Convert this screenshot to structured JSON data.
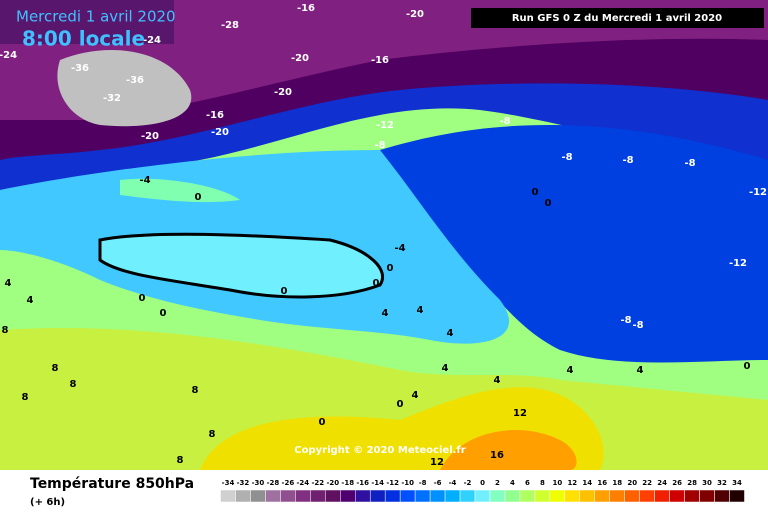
{
  "header": {
    "date": "Mercredi 1 avril 2020",
    "time": "8:00 locale",
    "run": "Run GFS 0 Z du Mercredi 1 avril 2020",
    "copyright": "Copyright © 2020 Meteociel.fr"
  },
  "footer": {
    "title": "Température 850hPa",
    "lead": "(+ 6h)"
  },
  "legend": {
    "ticks": [
      -34,
      -32,
      -30,
      -28,
      -26,
      -24,
      -22,
      -20,
      -18,
      -16,
      -14,
      -12,
      -10,
      -8,
      -6,
      -4,
      -2,
      0,
      2,
      4,
      6,
      8,
      10,
      12,
      14,
      16,
      18,
      20,
      22,
      24,
      26,
      28,
      30,
      32,
      34
    ],
    "colors": [
      "#d0d0d0",
      "#b0b0b0",
      "#909090",
      "#a070a0",
      "#905090",
      "#803080",
      "#702070",
      "#601060",
      "#500070",
      "#3010a0",
      "#1020c0",
      "#0030e0",
      "#0050ff",
      "#0070ff",
      "#0090ff",
      "#00b0ff",
      "#30d0ff",
      "#70f0ff",
      "#80ffc0",
      "#90ff90",
      "#b0ff60",
      "#d0ff30",
      "#f0ff00",
      "#ffe000",
      "#ffc000",
      "#ffa000",
      "#ff8000",
      "#ff6000",
      "#ff4000",
      "#f02000",
      "#d00000",
      "#a00000",
      "#800000",
      "#500000",
      "#200000"
    ]
  },
  "map": {
    "labels": [
      -28,
      -24,
      -24,
      -16,
      -20,
      -20,
      -16,
      -36,
      -36,
      -32,
      -20,
      -16,
      -20,
      -20,
      -12,
      -8,
      -8,
      -8,
      -8,
      -8,
      -12,
      -12,
      -4,
      0,
      0,
      0,
      -4,
      0,
      0,
      0,
      0,
      0,
      4,
      4,
      4,
      -8,
      -8,
      0,
      4,
      4,
      4,
      4,
      4,
      0,
      0,
      8,
      8,
      8,
      8,
      8,
      12,
      12,
      16,
      8,
      4,
      4,
      8
    ]
  }
}
